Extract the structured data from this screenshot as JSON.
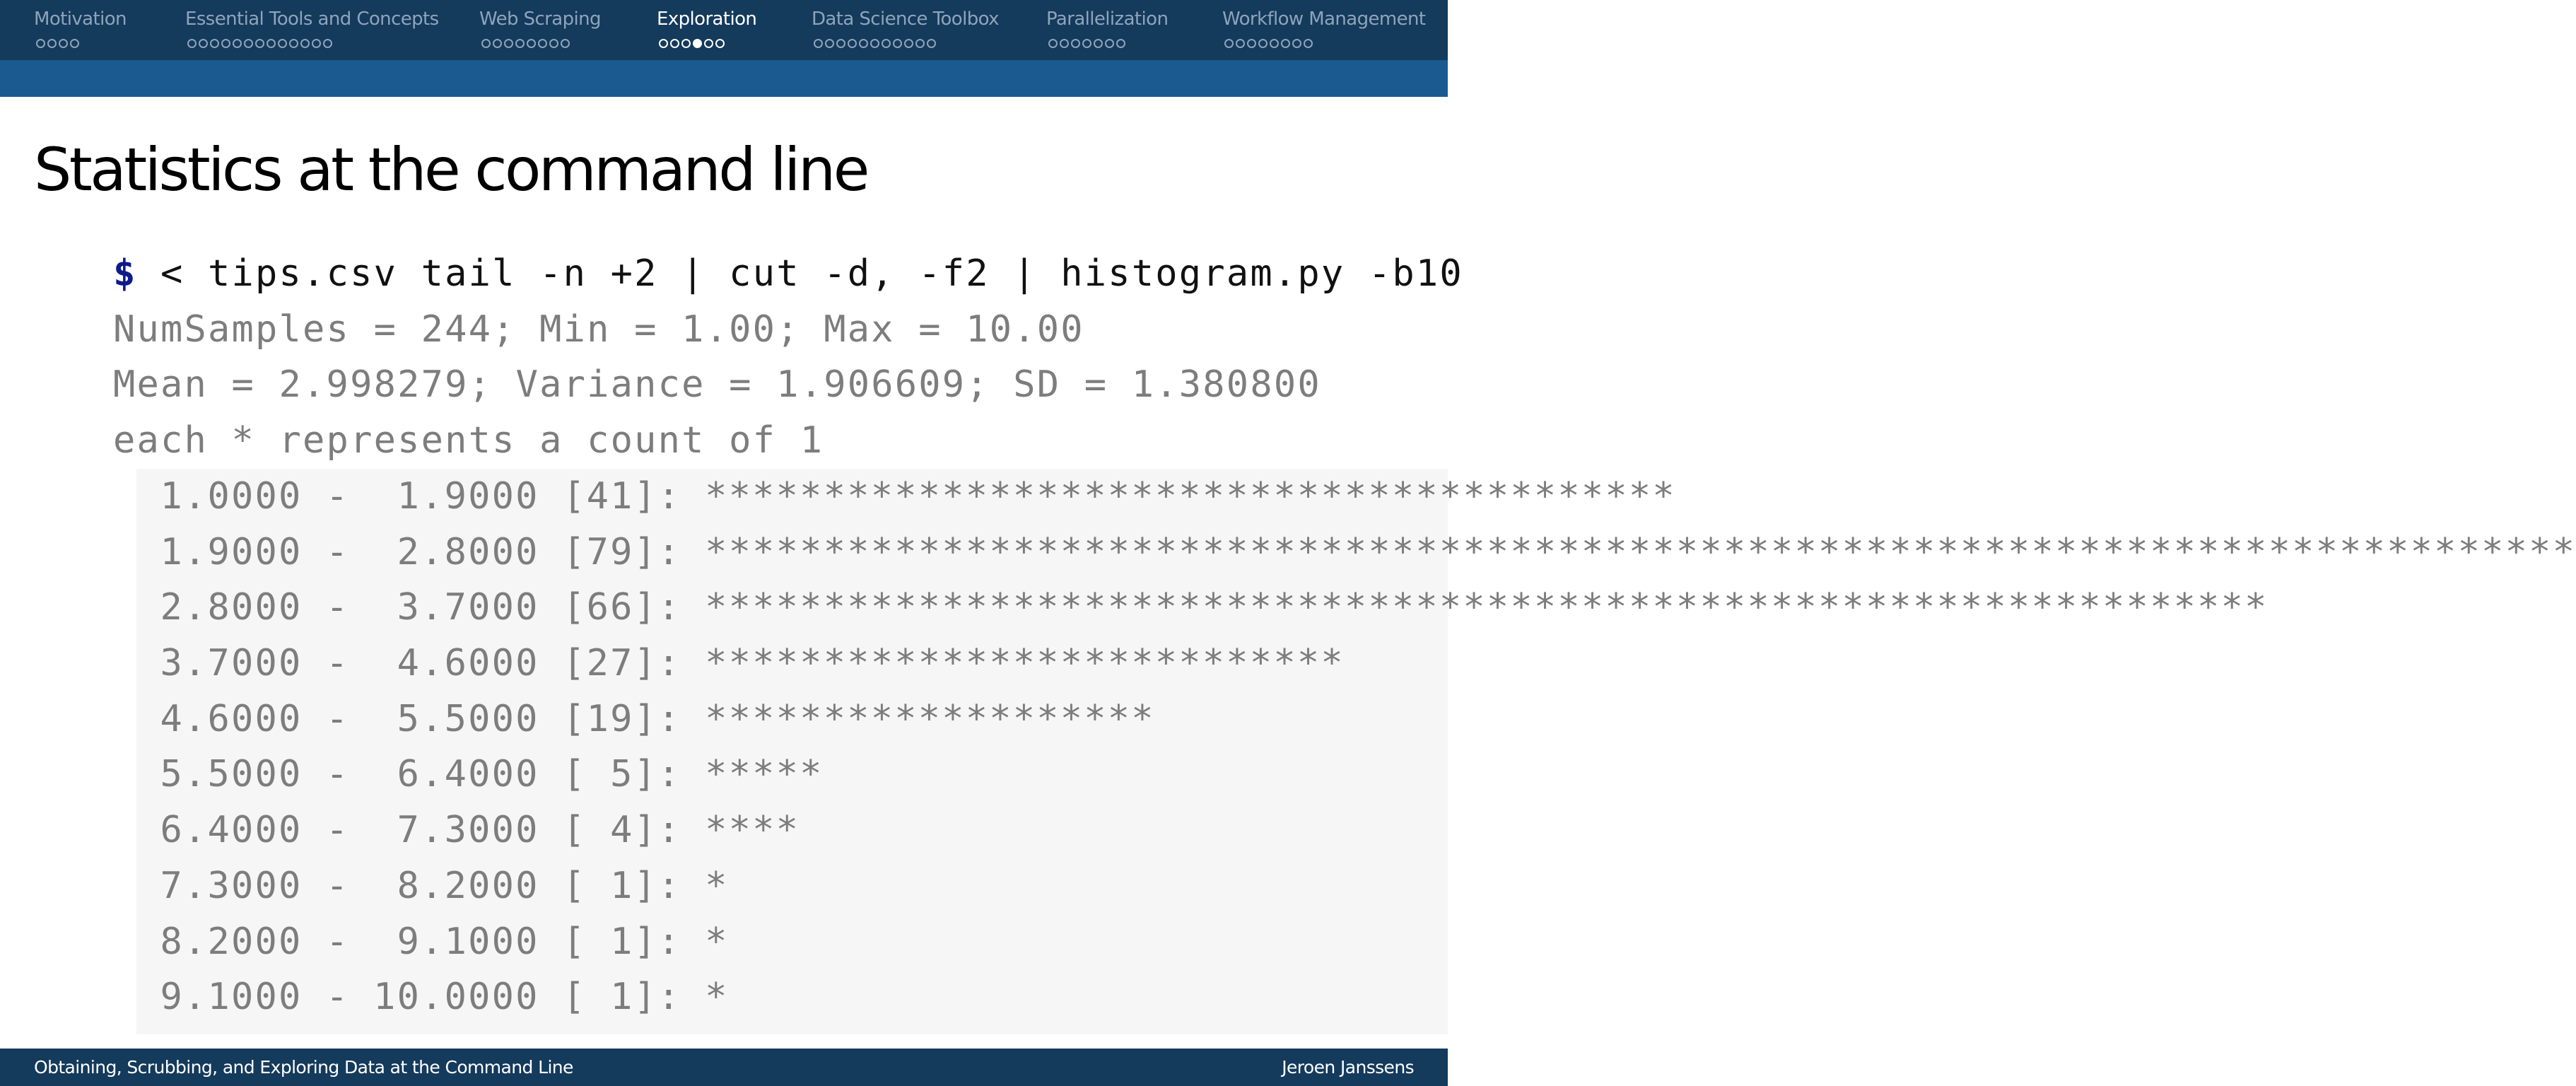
{
  "nav": {
    "sections": [
      {
        "label": "Motivation",
        "dots": 4,
        "current": -1
      },
      {
        "label": "Essential Tools and Concepts",
        "dots": 13,
        "current": -1
      },
      {
        "label": "Web Scraping",
        "dots": 8,
        "current": -1
      },
      {
        "label": "Exploration",
        "dots": 6,
        "current": 3
      },
      {
        "label": "Data Science Toolbox",
        "dots": 11,
        "current": -1
      },
      {
        "label": "Parallelization",
        "dots": 7,
        "current": -1
      },
      {
        "label": "Workflow Management",
        "dots": 8,
        "current": -1
      }
    ],
    "active_index": 3
  },
  "slide": {
    "title": "Statistics at the command line",
    "command": {
      "prompt": "$",
      "text": " < tips.csv tail -n +2 | cut -d, -f2 | histogram.py -b10"
    },
    "output_lines": [
      "NumSamples = 244; Min = 1.00; Max = 10.00",
      "Mean = 2.998279; Variance = 1.906609; SD = 1.380800",
      "each * represents a count of 1"
    ],
    "histogram": [
      {
        "low": "1.0000",
        "high": "1.9000",
        "count": 41
      },
      {
        "low": "1.9000",
        "high": "2.8000",
        "count": 79
      },
      {
        "low": "2.8000",
        "high": "3.7000",
        "count": 66
      },
      {
        "low": "3.7000",
        "high": "4.6000",
        "count": 27
      },
      {
        "low": "4.6000",
        "high": "5.5000",
        "count": 19
      },
      {
        "low": "5.5000",
        "high": "6.4000",
        "count": 5
      },
      {
        "low": "6.4000",
        "high": "7.3000",
        "count": 4
      },
      {
        "low": "7.3000",
        "high": "8.2000",
        "count": 1
      },
      {
        "low": "8.2000",
        "high": "9.1000",
        "count": 1
      },
      {
        "low": "9.1000",
        "high": "10.0000",
        "count": 1
      }
    ]
  },
  "footer": {
    "left": "Obtaining, Scrubbing, and Exploring Data at the Command Line",
    "right": "Jeroen Janssens"
  },
  "colors": {
    "nav_background": "#143a5c",
    "subbar_background": "#1a5a91",
    "prompt": "#0d1a8c",
    "output_text": "#7d7d7d",
    "inactive_nav_text": "#8fa4ba"
  }
}
